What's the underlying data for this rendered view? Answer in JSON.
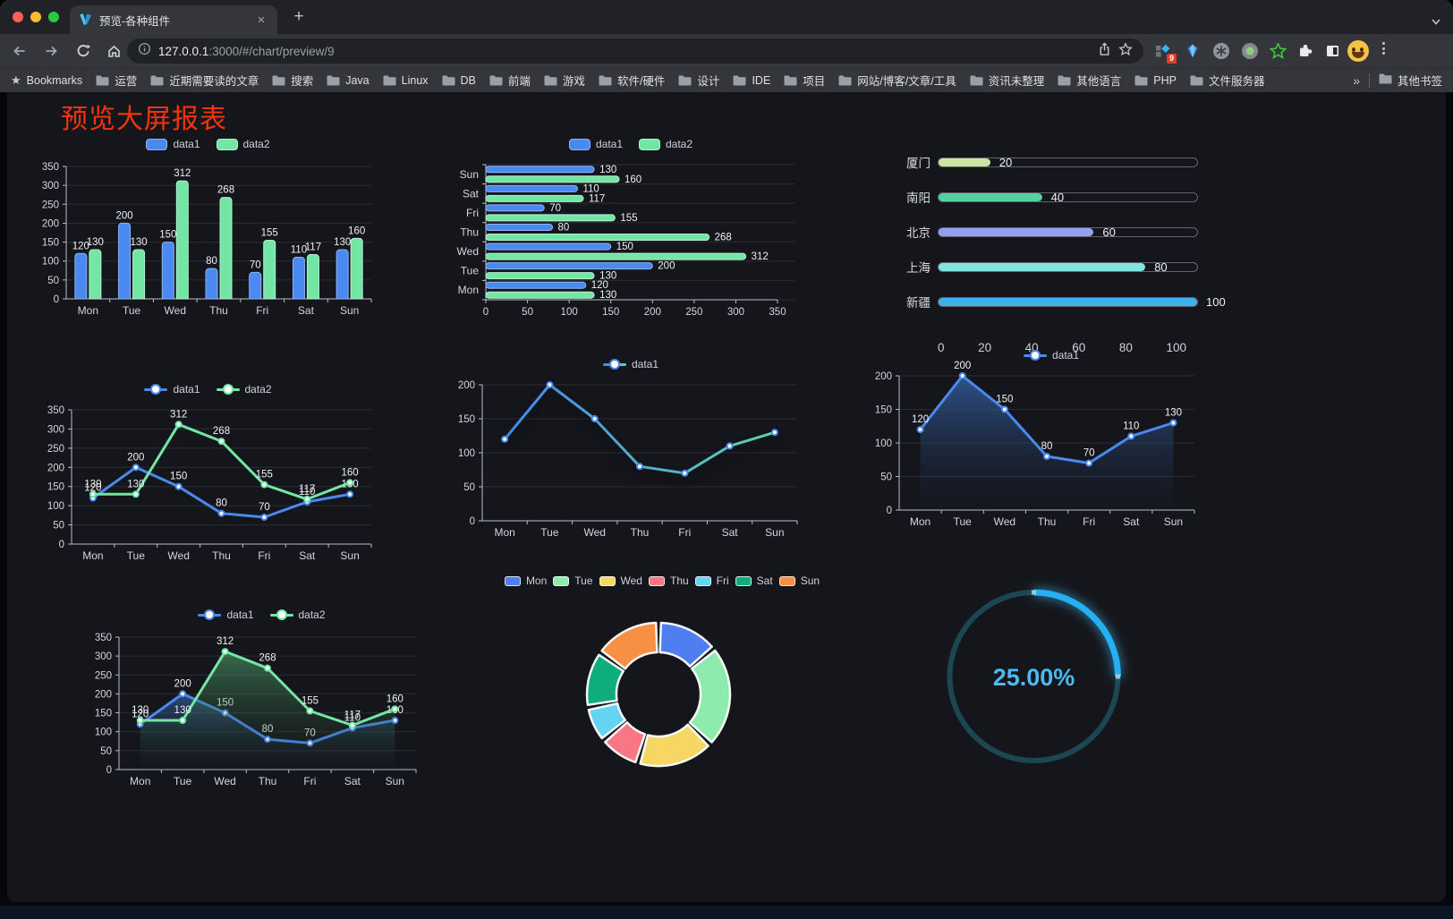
{
  "browser": {
    "tab": {
      "title": "预览-各种组件",
      "close_label": "×",
      "new_tab_label": "+"
    },
    "address": {
      "host": "127.0.0.1",
      "rest": ":3000/#/chart/preview/9"
    },
    "extensions_badge": "9",
    "bookmarks_bar": {
      "root_label": "Bookmarks",
      "folders": [
        "运营",
        "近期需要读的文章",
        "搜索",
        "Java",
        "Linux",
        "DB",
        "前端",
        "游戏",
        "软件/硬件",
        "设计",
        "IDE",
        "项目",
        "网站/博客/文章/工具",
        "资讯未整理",
        "其他语言",
        "PHP",
        "文件服务器"
      ],
      "overflow_label": "»",
      "other_bookmarks_label": "其他书签"
    }
  },
  "page": {
    "title": "预览大屏报表",
    "title_color": "#f5330e"
  },
  "chart_data": [
    {
      "id": "bar-vertical",
      "type": "bar",
      "categories": [
        "Mon",
        "Tue",
        "Wed",
        "Thu",
        "Fri",
        "Sat",
        "Sun"
      ],
      "series": [
        {
          "name": "data1",
          "color": "#4a89f0",
          "border": "#8db4f7",
          "values": [
            120,
            200,
            150,
            80,
            70,
            110,
            130
          ]
        },
        {
          "name": "data2",
          "color": "#73e6a6",
          "border": "#b0f2cf",
          "values": [
            130,
            130,
            312,
            268,
            155,
            117,
            160
          ]
        }
      ],
      "ylim": [
        0,
        350
      ],
      "yticks": [
        0,
        50,
        100,
        150,
        200,
        250,
        300,
        350
      ],
      "show_labels": true,
      "legend_position": "top",
      "grid": true
    },
    {
      "id": "bar-horizontal",
      "type": "bar",
      "orientation": "horizontal",
      "categories": [
        "Mon",
        "Tue",
        "Wed",
        "Thu",
        "Fri",
        "Sat",
        "Sun"
      ],
      "series": [
        {
          "name": "data1",
          "color": "#4a89f0",
          "border": "#8db4f7",
          "values": [
            120,
            200,
            150,
            80,
            70,
            110,
            130
          ]
        },
        {
          "name": "data2",
          "color": "#73e6a6",
          "border": "#b0f2cf",
          "values": [
            130,
            130,
            312,
            268,
            155,
            117,
            160
          ]
        }
      ],
      "xlim": [
        0,
        350
      ],
      "xticks": [
        0,
        50,
        100,
        150,
        200,
        250,
        300,
        350
      ],
      "show_labels": true,
      "legend_position": "top",
      "grid": true
    },
    {
      "id": "progress-list",
      "type": "bar",
      "style": "progress",
      "max": 100,
      "items": [
        {
          "label": "厦门",
          "value": 20,
          "color": "#cbe7a2"
        },
        {
          "label": "南阳",
          "value": 40,
          "color": "#55d1a0"
        },
        {
          "label": "北京",
          "value": 60,
          "color": "#95a0f0"
        },
        {
          "label": "上海",
          "value": 80,
          "color": "#7fe7de"
        },
        {
          "label": "新疆",
          "value": 100,
          "color": "#3db2ea"
        }
      ],
      "xticks": [
        0,
        20,
        40,
        60,
        80,
        100
      ]
    },
    {
      "id": "line-dual",
      "type": "line",
      "categories": [
        "Mon",
        "Tue",
        "Wed",
        "Thu",
        "Fri",
        "Sat",
        "Sun"
      ],
      "series": [
        {
          "name": "data1",
          "color": "#4a89f0",
          "values": [
            120,
            200,
            150,
            80,
            70,
            110,
            130
          ]
        },
        {
          "name": "data2",
          "color": "#73e6a6",
          "values": [
            130,
            130,
            312,
            268,
            155,
            117,
            160
          ]
        }
      ],
      "ylim": [
        0,
        350
      ],
      "yticks": [
        0,
        50,
        100,
        150,
        200,
        250,
        300,
        350
      ],
      "show_labels": true,
      "legend_position": "top",
      "grid": true
    },
    {
      "id": "line-gradient",
      "type": "line",
      "categories": [
        "Mon",
        "Tue",
        "Wed",
        "Thu",
        "Fri",
        "Sat",
        "Sun"
      ],
      "series": [
        {
          "name": "data1",
          "color": "#4a89f0",
          "gradient": [
            "#3f82f5",
            "#5fd9a6"
          ],
          "values": [
            120,
            200,
            150,
            80,
            70,
            110,
            130
          ]
        }
      ],
      "ylim": [
        0,
        200
      ],
      "yticks": [
        0,
        50,
        100,
        150,
        200
      ],
      "show_labels": false,
      "legend_position": "top",
      "grid": true
    },
    {
      "id": "area-single",
      "type": "area",
      "categories": [
        "Mon",
        "Tue",
        "Wed",
        "Thu",
        "Fri",
        "Sat",
        "Sun"
      ],
      "series": [
        {
          "name": "data1",
          "color": "#4a89f0",
          "fill": [
            "rgba(64,125,215,0.6)",
            "rgba(25,45,75,0.04)"
          ],
          "values": [
            120,
            200,
            150,
            80,
            70,
            110,
            130
          ]
        }
      ],
      "ylim": [
        0,
        200
      ],
      "yticks": [
        0,
        50,
        100,
        150,
        200
      ],
      "show_labels": true,
      "legend_position": "top",
      "grid": true
    },
    {
      "id": "area-dual",
      "type": "area",
      "categories": [
        "Mon",
        "Tue",
        "Wed",
        "Thu",
        "Fri",
        "Sat",
        "Sun"
      ],
      "series": [
        {
          "name": "data1",
          "color": "#4a89f0",
          "fill": [
            "rgba(70,120,200,0.5)",
            "rgba(20,30,50,0.05)"
          ],
          "values": [
            120,
            200,
            150,
            80,
            70,
            110,
            130
          ]
        },
        {
          "name": "data2",
          "color": "#73e6a6",
          "fill": [
            "rgba(90,180,120,0.55)",
            "rgba(20,40,30,0.05)"
          ],
          "values": [
            130,
            130,
            312,
            268,
            155,
            117,
            160
          ]
        }
      ],
      "ylim": [
        0,
        350
      ],
      "yticks": [
        0,
        50,
        100,
        150,
        200,
        250,
        300,
        350
      ],
      "show_labels": true,
      "legend_position": "top",
      "grid": true
    },
    {
      "id": "donut",
      "type": "pie",
      "inner_radius_ratio": 0.59,
      "legend_position": "top",
      "slices": [
        {
          "label": "Mon",
          "value": 120,
          "color": "#4e7ef0"
        },
        {
          "label": "Tue",
          "value": 200,
          "color": "#8decad"
        },
        {
          "label": "Wed",
          "value": 150,
          "color": "#f7d764"
        },
        {
          "label": "Thu",
          "value": 80,
          "color": "#f97784"
        },
        {
          "label": "Fri",
          "value": 70,
          "color": "#65d3f2"
        },
        {
          "label": "Sat",
          "value": 110,
          "color": "#10ad7c"
        },
        {
          "label": "Sun",
          "value": 130,
          "color": "#f78f44"
        }
      ]
    },
    {
      "id": "gauge",
      "type": "gauge",
      "value": 25,
      "max": 100,
      "label": "25.00%",
      "color": "#25b0f2",
      "track_color": "#1d4653",
      "text_color": "#4bb9f4"
    }
  ]
}
